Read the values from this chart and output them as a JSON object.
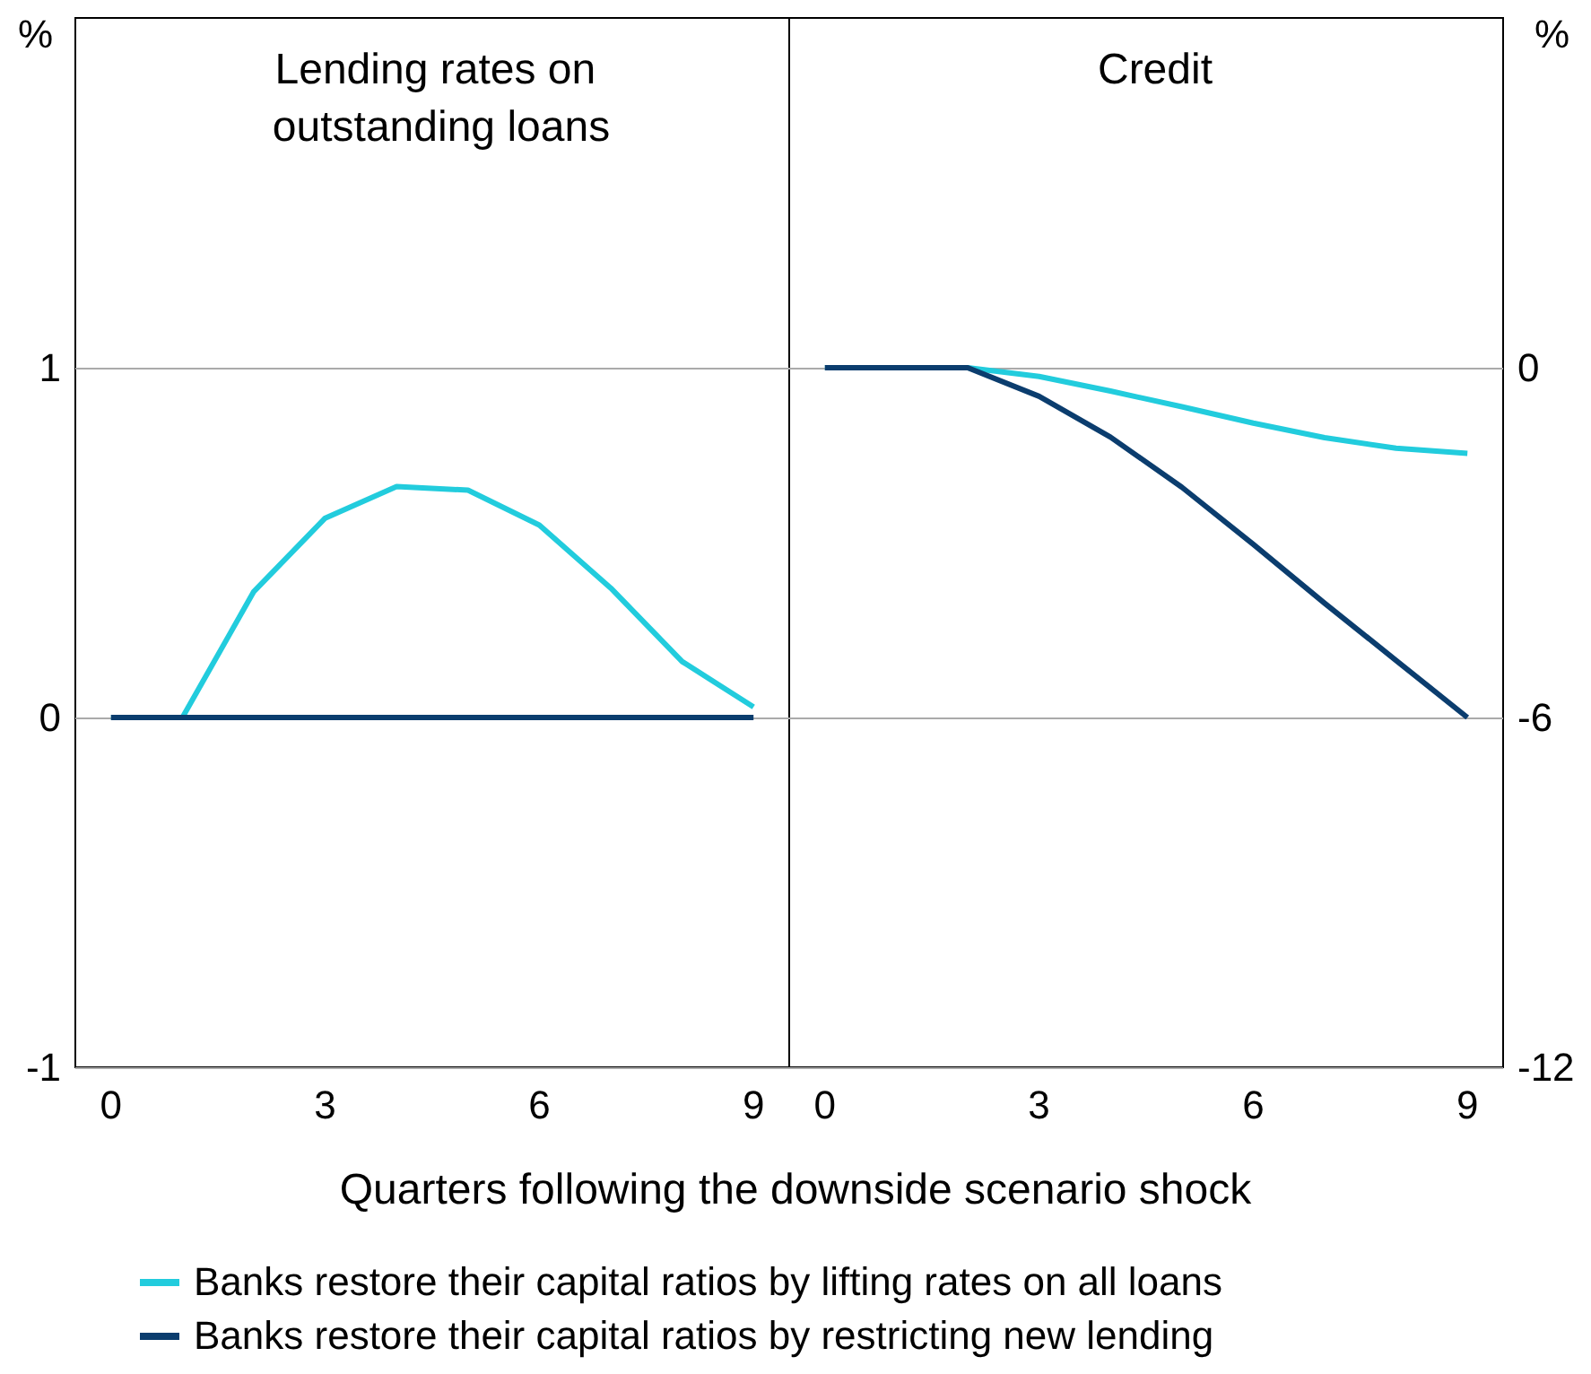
{
  "chart_data": [
    {
      "type": "line",
      "title": "Lending rates on outstanding loans",
      "ylabel": "%",
      "xlabel": "Quarters following the downside scenario shock",
      "x": [
        0,
        1,
        2,
        3,
        4,
        5,
        6,
        7,
        8,
        9
      ],
      "xlim": [
        -0.5,
        9.5
      ],
      "xticks": [
        0,
        3,
        6,
        9
      ],
      "ylim": [
        -1,
        2
      ],
      "yticks": [
        -1,
        0,
        1
      ],
      "grid": "y",
      "legend": "bottom",
      "marker": "none",
      "series": [
        {
          "name": "Banks restore their capital ratios by lifting rates on all loans",
          "color": "#22ccdd",
          "values": [
            0,
            0,
            0.36,
            0.57,
            0.66,
            0.65,
            0.55,
            0.37,
            0.16,
            0.03
          ]
        },
        {
          "name": "Banks restore their capital ratios by restricting new lending",
          "color": "#0b3d6e",
          "values": [
            0,
            0,
            0,
            0,
            0,
            0,
            0,
            0,
            0,
            0
          ]
        }
      ]
    },
    {
      "type": "line",
      "title": "Credit",
      "ylabel": "%",
      "x": [
        0,
        1,
        2,
        3,
        4,
        5,
        6,
        7,
        8,
        9
      ],
      "xlim": [
        -0.5,
        9.5
      ],
      "xticks": [
        0,
        3,
        6,
        9
      ],
      "ylim": [
        -12,
        6
      ],
      "yticks": [
        -12,
        -6,
        0
      ],
      "grid": "y",
      "marker": "none",
      "series": [
        {
          "color": "#22ccdd",
          "values": [
            0,
            0,
            0,
            -0.15,
            -0.4,
            -0.67,
            -0.95,
            -1.2,
            -1.38,
            -1.47
          ]
        },
        {
          "color": "#0b3d6e",
          "values": [
            0,
            0,
            0,
            -0.49,
            -1.19,
            -2.05,
            -3.03,
            -4.04,
            -5.02,
            -6
          ]
        }
      ]
    }
  ]
}
